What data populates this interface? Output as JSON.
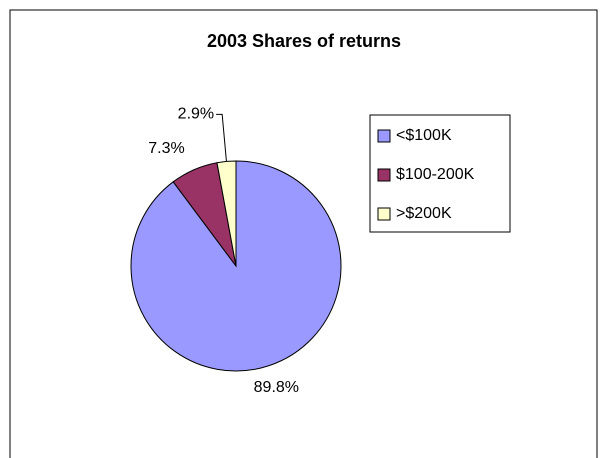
{
  "chart_data": {
    "type": "pie",
    "title": "2003 Shares of returns",
    "categories": [
      "<$100K",
      "$100-200K",
      ">$200K"
    ],
    "values": [
      89.8,
      7.3,
      2.9
    ],
    "value_labels": [
      "89.8%",
      "7.3%",
      "2.9%"
    ],
    "colors": [
      "#9999ff",
      "#993366",
      "#ffffcc"
    ],
    "legend": "right"
  }
}
